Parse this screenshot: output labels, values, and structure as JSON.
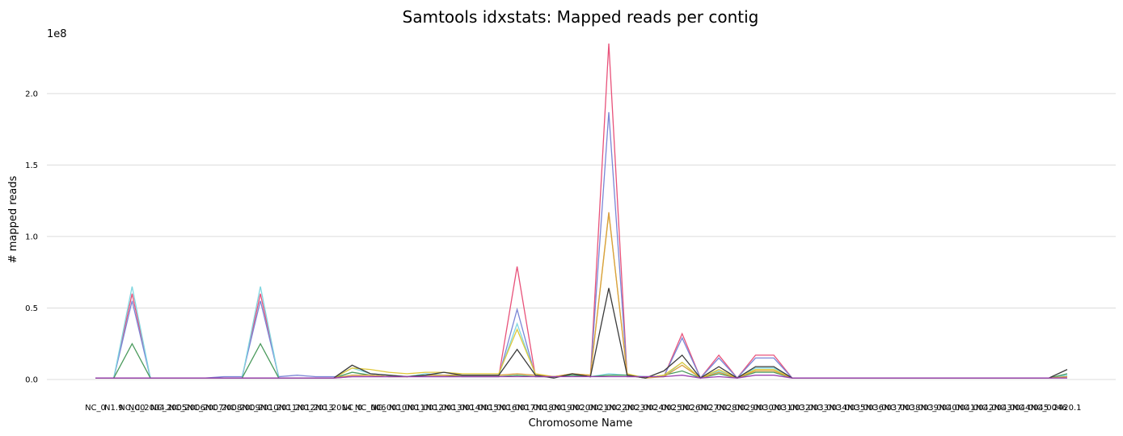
{
  "chart_data": {
    "type": "line",
    "title": "Samtools idxstats: Mapped reads per contig",
    "xlabel": "Chromosome Name",
    "ylabel": "# mapped reads",
    "y_multiplier": "1e8",
    "ylim": [
      0,
      2.4
    ],
    "yticks": [
      0.0,
      0.5,
      1.0,
      1.5,
      2.0
    ],
    "ytick_labels": [
      "0.0",
      "0.5",
      "1.0",
      "1.5",
      "2.0"
    ],
    "grid": true,
    "x_tick_labels": [
      "NC_0",
      "N1.9",
      "NC_00",
      "NC_2004.1",
      "NC_2005",
      "NC_2006",
      "NC_2007",
      "NC_2008",
      "NC_2009",
      "NC_2010",
      "NC_2011",
      "NC_2012",
      "NC_2013",
      "NC_2014",
      "NC_0",
      "NC_006",
      "NC_0010",
      "NC_0011",
      "NC_0012",
      "NC_0013",
      "NC_0014",
      "NC_0015",
      "NC_0016",
      "NC_0017",
      "NC_0018",
      "NC_0019",
      "NC_0020",
      "NC_0021",
      "NC_0022",
      "NC_0023",
      "NC_0024",
      "NC_0025",
      "NC_0026",
      "NC_0027",
      "NC_0028",
      "NC_0029",
      "NC_0030",
      "NC_0031",
      "NC_0032",
      "NC_0033",
      "NC_0034",
      "NC_0035",
      "NC_0036",
      "NC_0037",
      "NC_0038",
      "NC_0039",
      "NC_0040",
      "NC_0041",
      "NC_0042",
      "NC_0043",
      "NC_0044",
      "NC_0045",
      "NC_0046",
      "2420.1"
    ],
    "series": [
      {
        "color": "#e8527a",
        "values": [
          0.01,
          0.01,
          0.6,
          0.01,
          0.01,
          0.01,
          0.01,
          0.01,
          0.01,
          0.6,
          0.01,
          0.01,
          0.01,
          0.01,
          0.02,
          0.02,
          0.02,
          0.02,
          0.02,
          0.02,
          0.02,
          0.02,
          0.02,
          0.79,
          0.02,
          0.02,
          0.03,
          0.02,
          2.35,
          0.02,
          0.02,
          0.02,
          0.32,
          0.01,
          0.17,
          0.01,
          0.17,
          0.17,
          0.01,
          0.01,
          0.01,
          0.01,
          0.01,
          0.01,
          0.01,
          0.01,
          0.01,
          0.01,
          0.01,
          0.01,
          0.01,
          0.01,
          0.01,
          0.02
        ]
      },
      {
        "color": "#7a86d6",
        "values": [
          0.01,
          0.01,
          0.55,
          0.01,
          0.01,
          0.01,
          0.01,
          0.02,
          0.02,
          0.55,
          0.02,
          0.03,
          0.02,
          0.02,
          0.02,
          0.02,
          0.02,
          0.02,
          0.02,
          0.02,
          0.02,
          0.02,
          0.02,
          0.49,
          0.02,
          0.02,
          0.03,
          0.02,
          1.87,
          0.02,
          0.02,
          0.02,
          0.29,
          0.01,
          0.15,
          0.01,
          0.15,
          0.15,
          0.01,
          0.01,
          0.01,
          0.01,
          0.01,
          0.01,
          0.01,
          0.01,
          0.01,
          0.01,
          0.01,
          0.01,
          0.01,
          0.01,
          0.01,
          0.02
        ]
      },
      {
        "color": "#7fd6e0",
        "values": [
          0.01,
          0.01,
          0.65,
          0.01,
          0.01,
          0.01,
          0.01,
          0.01,
          0.01,
          0.65,
          0.01,
          0.01,
          0.01,
          0.01,
          0.08,
          0.04,
          0.03,
          0.02,
          0.04,
          0.03,
          0.03,
          0.03,
          0.03,
          0.39,
          0.03,
          0.02,
          0.03,
          0.02,
          0.04,
          0.03,
          0.02,
          0.02,
          0.12,
          0.01,
          0.06,
          0.01,
          0.08,
          0.08,
          0.01,
          0.01,
          0.01,
          0.01,
          0.01,
          0.01,
          0.01,
          0.01,
          0.01,
          0.01,
          0.01,
          0.01,
          0.01,
          0.01,
          0.01,
          0.03
        ]
      },
      {
        "color": "#4a9a5c",
        "values": [
          0.01,
          0.01,
          0.25,
          0.01,
          0.01,
          0.01,
          0.01,
          0.01,
          0.01,
          0.25,
          0.01,
          0.01,
          0.01,
          0.01,
          0.05,
          0.03,
          0.02,
          0.02,
          0.03,
          0.03,
          0.02,
          0.02,
          0.02,
          0.03,
          0.02,
          0.02,
          0.03,
          0.02,
          0.03,
          0.03,
          0.01,
          0.03,
          0.06,
          0.01,
          0.04,
          0.01,
          0.05,
          0.05,
          0.01,
          0.01,
          0.01,
          0.01,
          0.01,
          0.01,
          0.01,
          0.01,
          0.01,
          0.01,
          0.01,
          0.01,
          0.01,
          0.01,
          0.01,
          0.04
        ]
      },
      {
        "color": "#e0c93a",
        "values": [
          0.01,
          0.01,
          0.01,
          0.01,
          0.01,
          0.01,
          0.01,
          0.01,
          0.01,
          0.01,
          0.01,
          0.01,
          0.01,
          0.01,
          0.08,
          0.07,
          0.05,
          0.04,
          0.05,
          0.05,
          0.04,
          0.04,
          0.04,
          0.35,
          0.04,
          0.02,
          0.04,
          0.03,
          1.16,
          0.04,
          0.01,
          0.03,
          0.12,
          0.01,
          0.07,
          0.01,
          0.07,
          0.07,
          0.01,
          0.01,
          0.01,
          0.01,
          0.01,
          0.01,
          0.01,
          0.01,
          0.01,
          0.01,
          0.01,
          0.01,
          0.01,
          0.01,
          0.01,
          0.02
        ]
      },
      {
        "color": "#d9a040",
        "values": [
          0.01,
          0.01,
          0.01,
          0.01,
          0.01,
          0.01,
          0.01,
          0.01,
          0.01,
          0.01,
          0.01,
          0.01,
          0.01,
          0.01,
          0.03,
          0.03,
          0.02,
          0.02,
          0.03,
          0.03,
          0.03,
          0.03,
          0.03,
          0.04,
          0.03,
          0.02,
          0.04,
          0.03,
          1.17,
          0.03,
          0.01,
          0.02,
          0.1,
          0.01,
          0.05,
          0.01,
          0.06,
          0.06,
          0.01,
          0.01,
          0.01,
          0.01,
          0.01,
          0.01,
          0.01,
          0.01,
          0.01,
          0.01,
          0.01,
          0.01,
          0.01,
          0.01,
          0.01,
          0.02
        ]
      },
      {
        "color": "#3a3a3a",
        "values": [
          0.01,
          0.01,
          0.01,
          0.01,
          0.01,
          0.01,
          0.01,
          0.01,
          0.01,
          0.01,
          0.01,
          0.01,
          0.01,
          0.01,
          0.1,
          0.04,
          0.03,
          0.02,
          0.03,
          0.05,
          0.03,
          0.03,
          0.03,
          0.21,
          0.03,
          0.01,
          0.04,
          0.02,
          0.64,
          0.03,
          0.01,
          0.06,
          0.17,
          0.01,
          0.09,
          0.01,
          0.09,
          0.09,
          0.01,
          0.01,
          0.01,
          0.01,
          0.01,
          0.01,
          0.01,
          0.01,
          0.01,
          0.01,
          0.01,
          0.01,
          0.01,
          0.01,
          0.01,
          0.07
        ]
      },
      {
        "color": "#9a3fb0",
        "values": [
          0.01,
          0.01,
          0.01,
          0.01,
          0.01,
          0.01,
          0.01,
          0.01,
          0.01,
          0.01,
          0.01,
          0.01,
          0.01,
          0.01,
          0.02,
          0.02,
          0.02,
          0.02,
          0.02,
          0.02,
          0.02,
          0.02,
          0.02,
          0.02,
          0.02,
          0.02,
          0.02,
          0.02,
          0.02,
          0.02,
          0.02,
          0.02,
          0.03,
          0.01,
          0.02,
          0.01,
          0.03,
          0.03,
          0.01,
          0.01,
          0.01,
          0.01,
          0.01,
          0.01,
          0.01,
          0.01,
          0.01,
          0.01,
          0.01,
          0.01,
          0.01,
          0.01,
          0.01,
          0.01
        ]
      }
    ]
  }
}
